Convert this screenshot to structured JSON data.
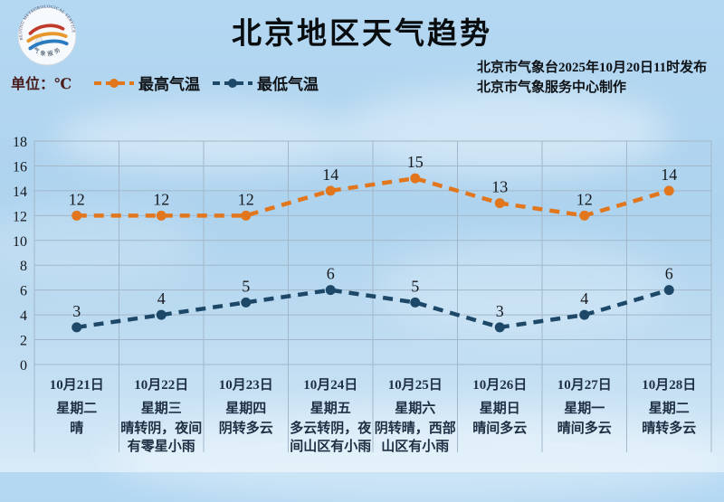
{
  "header": {
    "title": "北京地区天气趋势",
    "unit_label": "单位：℃",
    "publisher_line1": "北京市气象台2025年10月20日11时发布",
    "publisher_line2": "北京市气象服务中心制作",
    "logo": {
      "text_top": "BEIJING METEOROLOGICAL SERVICE",
      "text_bottom": "气象服务"
    }
  },
  "legend": [
    {
      "label": "最高气温",
      "color": "#e2761c"
    },
    {
      "label": "最低气温",
      "color": "#1d4868"
    }
  ],
  "chart_data": {
    "type": "line",
    "title": "北京地区天气趋势",
    "ylabel": "℃",
    "ylim": [
      0,
      18
    ],
    "ytick_step": 2,
    "grid": true,
    "line_style": "dashed",
    "legend_position": "top",
    "categories": [
      "10月21日",
      "10月22日",
      "10月23日",
      "10月24日",
      "10月25日",
      "10月26日",
      "10月27日",
      "10月28日"
    ],
    "weekdays": [
      "星期二",
      "星期三",
      "星期四",
      "星期五",
      "星期六",
      "星期日",
      "星期一",
      "星期二"
    ],
    "weather": [
      [
        "晴"
      ],
      [
        "晴转阴，夜间",
        "有零星小雨"
      ],
      [
        "阴转多云"
      ],
      [
        "多云转阴，夜",
        "间山区有小雨"
      ],
      [
        "阴转晴，西部",
        "山区有小雨"
      ],
      [
        "晴间多云"
      ],
      [
        "晴间多云"
      ],
      [
        "晴转多云"
      ]
    ],
    "series": [
      {
        "name": "最高气温",
        "color": "#e2761c",
        "values": [
          12,
          12,
          12,
          14,
          15,
          13,
          12,
          14
        ]
      },
      {
        "name": "最低气温",
        "color": "#1d4868",
        "values": [
          3,
          4,
          5,
          6,
          5,
          3,
          4,
          6
        ]
      }
    ]
  }
}
